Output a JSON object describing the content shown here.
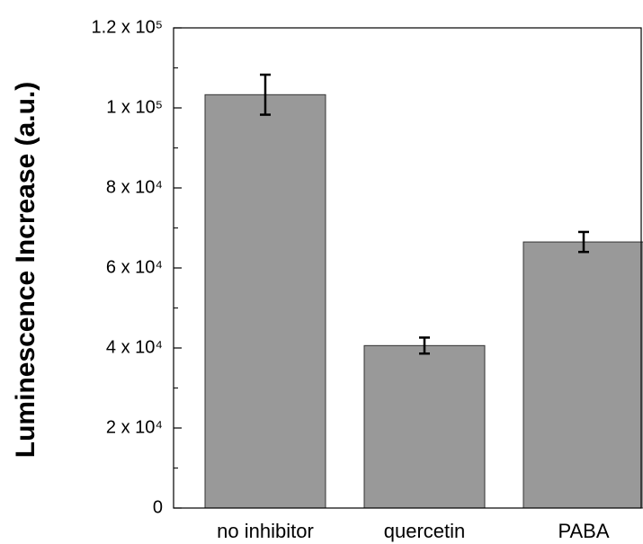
{
  "chart_data": {
    "type": "bar",
    "y_label": "Luminescence Increase (a.u.)",
    "categories": [
      "no inhibitor",
      "quercetin",
      "PABA"
    ],
    "values": [
      103300,
      40600,
      66500
    ],
    "errors": [
      5000,
      2000,
      2500
    ],
    "color": "#999999",
    "ylim": [
      0,
      120000
    ],
    "yticks": [
      0,
      {
        "value": 20000,
        "label": "2 x 10⁴"
      },
      {
        "value": 40000,
        "label": "4 x 10⁴"
      },
      {
        "value": 60000,
        "label": "6 x 10⁴"
      },
      {
        "value": 80000,
        "label": "8 x 10⁴"
      },
      {
        "value": 100000,
        "label": "1 x 10⁵"
      },
      {
        "value": 120000,
        "label": "1.2 x 10⁵"
      }
    ],
    "yticks_minor": [
      10000,
      30000,
      50000,
      70000,
      90000,
      110000
    ]
  }
}
